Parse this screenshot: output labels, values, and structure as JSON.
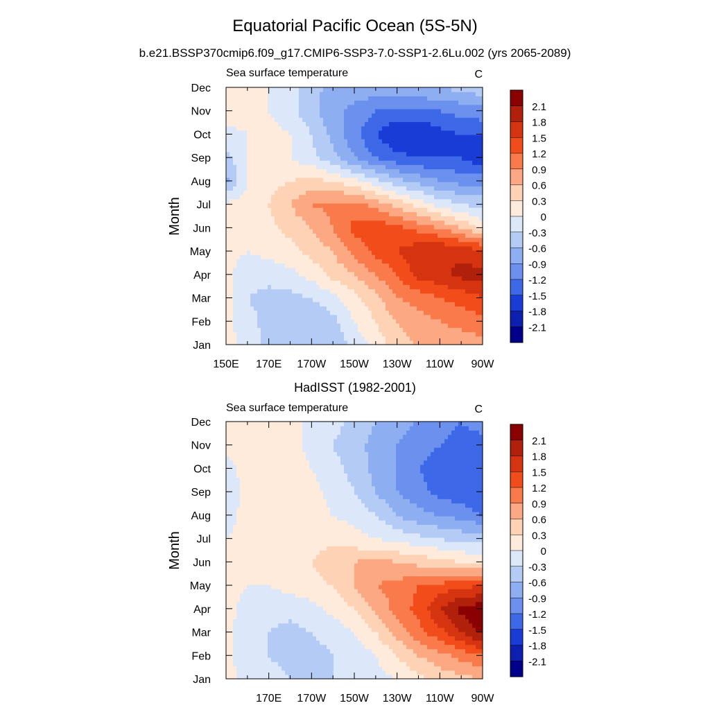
{
  "figure": {
    "title": "Equatorial Pacific Ocean (5S-5N)",
    "subtitle": "b.e21.BSSP370cmip6.f09_g17.CMIP6-SSP3-7.0-SSP1-2.6Lu.002 (yrs 2065-2089)"
  },
  "chart_data": [
    {
      "type": "heatmap",
      "title": "",
      "subtitle_left": "Sea surface temperature",
      "units": "C",
      "ylabel": "Month",
      "xlabel": "",
      "x_tick_labels": [
        "150E",
        "170E",
        "170W",
        "150W",
        "130W",
        "110W",
        "90W"
      ],
      "x_tick_lons": [
        150,
        170,
        190,
        210,
        230,
        250,
        270
      ],
      "xlim": [
        150,
        270
      ],
      "y_tick_labels": [
        "Jan",
        "Feb",
        "Mar",
        "Apr",
        "May",
        "Jun",
        "Jul",
        "Aug",
        "Sep",
        "Oct",
        "Nov",
        "Dec"
      ],
      "y_ticks": [
        1,
        2,
        3,
        4,
        5,
        6,
        7,
        8,
        9,
        10,
        11,
        12
      ],
      "ylim": [
        1,
        12
      ],
      "colorbar_levels": [
        2.1,
        1.8,
        1.5,
        1.2,
        0.9,
        0.6,
        0.3,
        0,
        -0.3,
        -0.6,
        -0.9,
        -1.2,
        -1.5,
        -1.8,
        -2.1
      ],
      "colorbar_labels": [
        "2.1",
        "1.8",
        "1.5",
        "1.2",
        "0.9",
        "0.6",
        "0.3",
        "0",
        "-0.3",
        "-0.6",
        "-0.9",
        "-1.2",
        "-1.5",
        "-1.8",
        "-2.1"
      ],
      "colorbar_colors": [
        "#8B0000",
        "#B0200A",
        "#D63410",
        "#F24C1B",
        "#F97A4B",
        "#FBA883",
        "#FDD2B5",
        "#FEEBDC",
        "#DCE8FA",
        "#B4CBF5",
        "#8EAEF2",
        "#6B90EE",
        "#3D68E8",
        "#1A3CD6",
        "#0C1FAE",
        "#00008B"
      ],
      "lons": [
        150,
        160,
        170,
        180,
        190,
        200,
        210,
        220,
        230,
        240,
        250,
        260,
        270
      ],
      "values_by_month": [
        [
          0.1,
          -0.1,
          -0.4,
          -0.6,
          -0.6,
          -0.5,
          -0.2,
          0.1,
          0.5,
          0.6,
          0.7,
          0.7,
          0.8
        ],
        [
          0.1,
          -0.2,
          -0.4,
          -0.6,
          -0.6,
          -0.4,
          0.0,
          0.3,
          0.6,
          0.8,
          0.9,
          1.0,
          1.1
        ],
        [
          0.1,
          -0.3,
          -0.4,
          -0.4,
          -0.3,
          -0.1,
          0.2,
          0.5,
          0.9,
          1.0,
          1.2,
          1.3,
          1.5
        ],
        [
          0.1,
          -0.2,
          -0.2,
          -0.1,
          0.1,
          0.4,
          0.6,
          0.9,
          1.2,
          1.6,
          1.7,
          1.9,
          1.9
        ],
        [
          0.1,
          0.0,
          0.1,
          0.2,
          0.4,
          0.6,
          1.0,
          1.3,
          1.5,
          1.7,
          1.8,
          1.7,
          1.6
        ],
        [
          0.1,
          0.1,
          0.2,
          0.4,
          0.6,
          0.9,
          1.3,
          1.4,
          1.3,
          1.1,
          0.9,
          0.6,
          0.2
        ],
        [
          0.1,
          0.1,
          0.3,
          0.6,
          0.9,
          1.0,
          1.0,
          0.8,
          0.5,
          0.2,
          -0.1,
          -0.3,
          -0.4
        ],
        [
          -0.7,
          0.0,
          0.2,
          0.3,
          0.4,
          0.3,
          0.1,
          -0.2,
          -0.5,
          -0.7,
          -0.9,
          -1.0,
          -1.0
        ],
        [
          -0.4,
          0.0,
          0.0,
          0.0,
          -0.2,
          -0.5,
          -0.9,
          -1.2,
          -1.4,
          -1.5,
          -1.5,
          -1.5,
          -1.8
        ],
        [
          -0.1,
          0.0,
          0.1,
          0.0,
          -0.3,
          -0.7,
          -1.1,
          -1.5,
          -1.8,
          -1.8,
          -1.6,
          -1.5,
          -1.5
        ],
        [
          0.2,
          0.1,
          0.0,
          -0.2,
          -0.5,
          -0.8,
          -1.0,
          -1.2,
          -1.3,
          -1.3,
          -1.2,
          -1.1,
          -1.0
        ],
        [
          0.3,
          0.1,
          0.0,
          -0.2,
          -0.5,
          -0.7,
          -0.7,
          -0.7,
          -0.7,
          -0.6,
          -0.6,
          -0.5,
          -0.4
        ]
      ]
    },
    {
      "type": "heatmap",
      "title": "HadISST (1982-2001)",
      "subtitle_left": "Sea surface temperature",
      "units": "C",
      "ylabel": "Month",
      "xlabel": "",
      "x_tick_labels": [
        "170E",
        "170W",
        "150W",
        "130W",
        "110W",
        "90W"
      ],
      "x_tick_lons": [
        170,
        190,
        210,
        230,
        250,
        270
      ],
      "xlim": [
        150,
        270
      ],
      "y_tick_labels": [
        "Jan",
        "Feb",
        "Mar",
        "Apr",
        "May",
        "Jun",
        "Jul",
        "Aug",
        "Sep",
        "Oct",
        "Nov",
        "Dec"
      ],
      "y_ticks": [
        1,
        2,
        3,
        4,
        5,
        6,
        7,
        8,
        9,
        10,
        11,
        12
      ],
      "ylim": [
        1,
        12
      ],
      "colorbar_levels": [
        2.1,
        1.8,
        1.5,
        1.2,
        0.9,
        0.6,
        0.3,
        0,
        -0.3,
        -0.6,
        -0.9,
        -1.2,
        -1.5,
        -1.8,
        -2.1
      ],
      "colorbar_labels": [
        "2.1",
        "1.8",
        "1.5",
        "1.2",
        "0.9",
        "0.6",
        "0.3",
        "0",
        "-0.3",
        "-0.6",
        "-0.9",
        "-1.2",
        "-1.5",
        "-1.8",
        "-2.1"
      ],
      "colorbar_colors": [
        "#8B0000",
        "#B0200A",
        "#D63410",
        "#F24C1B",
        "#F97A4B",
        "#FBA883",
        "#FDD2B5",
        "#FEEBDC",
        "#DCE8FA",
        "#B4CBF5",
        "#8EAEF2",
        "#6B90EE",
        "#3D68E8",
        "#1A3CD6",
        "#0C1FAE",
        "#00008B"
      ],
      "lons": [
        150,
        160,
        170,
        180,
        190,
        200,
        210,
        220,
        230,
        240,
        250,
        260,
        270
      ],
      "values_by_month": [
        [
          0.1,
          -0.1,
          -0.2,
          -0.3,
          -0.3,
          -0.3,
          -0.2,
          -0.1,
          0.0,
          0.2,
          0.4,
          0.5,
          0.6
        ],
        [
          0.1,
          -0.2,
          -0.3,
          -0.4,
          -0.4,
          -0.3,
          -0.2,
          0.0,
          0.3,
          0.6,
          0.8,
          1.0,
          1.2
        ],
        [
          0.1,
          -0.2,
          -0.3,
          -0.4,
          -0.3,
          -0.2,
          0.0,
          0.3,
          0.7,
          1.1,
          1.4,
          1.8,
          2.2
        ],
        [
          0.1,
          -0.1,
          -0.2,
          -0.2,
          -0.1,
          0.1,
          0.3,
          0.7,
          1.0,
          1.3,
          1.8,
          2.2,
          2.3
        ],
        [
          0.1,
          0.0,
          0.0,
          0.1,
          0.2,
          0.3,
          0.6,
          0.9,
          1.0,
          1.2,
          1.3,
          1.4,
          1.5
        ],
        [
          0.1,
          0.1,
          0.1,
          0.2,
          0.3,
          0.5,
          0.6,
          0.7,
          0.6,
          0.5,
          0.4,
          0.3,
          0.2
        ],
        [
          0.0,
          0.1,
          0.1,
          0.2,
          0.2,
          0.2,
          0.1,
          0.0,
          -0.1,
          -0.2,
          -0.3,
          -0.4,
          -0.4
        ],
        [
          -0.1,
          0.1,
          0.1,
          0.2,
          0.1,
          0.0,
          -0.1,
          -0.3,
          -0.6,
          -0.8,
          -0.9,
          -1.0,
          -1.2
        ],
        [
          -0.2,
          0.1,
          0.1,
          0.3,
          0.1,
          -0.1,
          -0.3,
          -0.6,
          -0.9,
          -1.1,
          -1.3,
          -1.4,
          -1.5
        ],
        [
          -0.1,
          0.1,
          0.1,
          0.2,
          0.0,
          -0.2,
          -0.4,
          -0.7,
          -0.9,
          -1.2,
          -1.3,
          -1.4,
          -1.5
        ],
        [
          0.1,
          0.1,
          0.1,
          0.1,
          -0.1,
          -0.3,
          -0.5,
          -0.7,
          -0.9,
          -1.1,
          -1.2,
          -1.3,
          -1.3
        ],
        [
          0.1,
          0.1,
          0.1,
          0.1,
          -0.1,
          -0.2,
          -0.4,
          -0.6,
          -0.8,
          -0.9,
          -1.1,
          -1.2,
          -1.1
        ]
      ]
    }
  ]
}
